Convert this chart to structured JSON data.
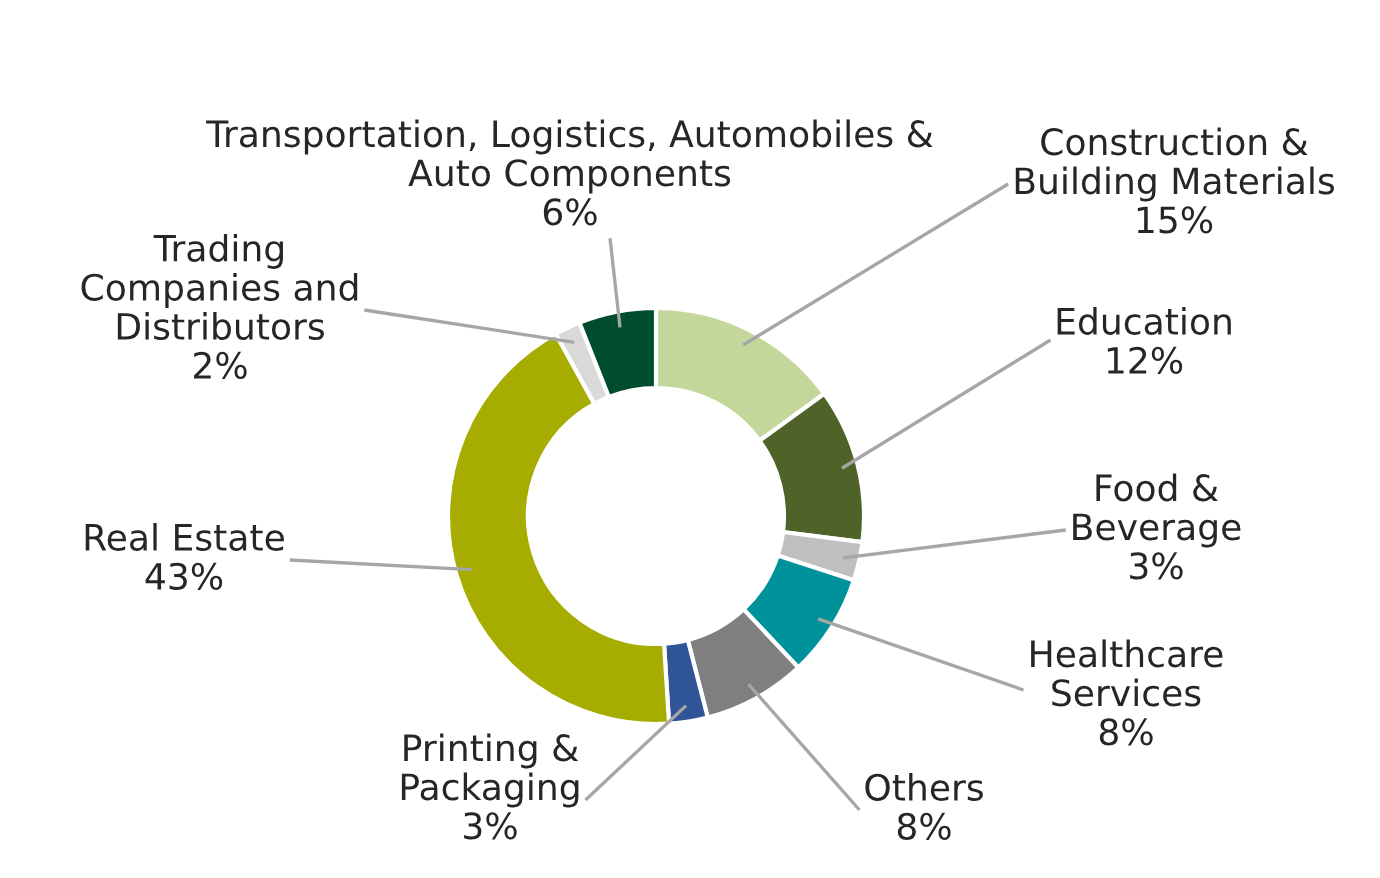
{
  "chart_data": {
    "type": "donut",
    "categories": [
      "Construction &\nBuilding Materials",
      "Education",
      "Food &\nBeverage",
      "Healthcare\nServices",
      "Others",
      "Printing &\nPackaging",
      "Real Estate",
      "Trading\nCompanies and\nDistributors",
      "Transportation, Logistics, Automobiles &\nAuto Components"
    ],
    "values": [
      15,
      12,
      3,
      8,
      8,
      3,
      43,
      2,
      6
    ],
    "value_labels": [
      "15%",
      "12%",
      "3%",
      "8%",
      "8%",
      "3%",
      "43%",
      "2%",
      "6%"
    ],
    "colors": [
      "#c4d79b",
      "#4f6228",
      "#bfbfbf",
      "#00929b",
      "#7f7f7f",
      "#2f5597",
      "#a6ad00",
      "#d9d9d9",
      "#004d2e"
    ]
  }
}
